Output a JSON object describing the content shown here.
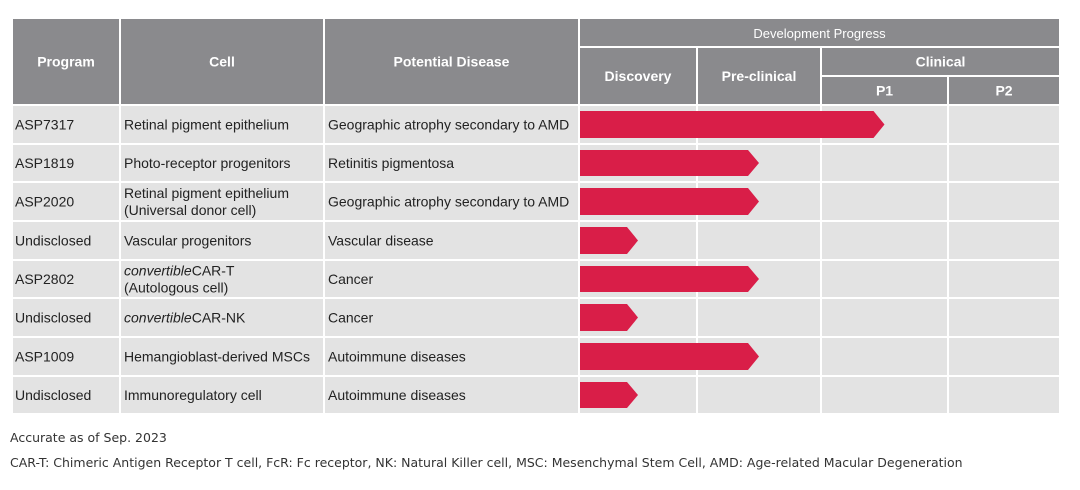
{
  "chart_data": {
    "type": "table",
    "title": "Development Progress",
    "stages": {
      "discovery": "Discovery",
      "preclinical": "Pre-clinical",
      "clinical": "Clinical",
      "p1": "P1",
      "p2": "P2"
    },
    "columns": {
      "program": "Program",
      "cell": "Cell",
      "disease": "Potential Disease"
    },
    "stage_scale": [
      "Discovery",
      "Pre-clinical",
      "P1",
      "P2"
    ],
    "rows": [
      {
        "program": "ASP7317",
        "cell": [
          "Retinal pigment epithelium"
        ],
        "disease": "Geographic atrophy secondary to AMD",
        "progress": 2.5
      },
      {
        "program": "ASP1819",
        "cell": [
          "Photo-receptor progenitors"
        ],
        "disease": "Retinitis pigmentosa",
        "progress": 1.5
      },
      {
        "program": "ASP2020",
        "cell": [
          "Retinal pigment epithelium",
          "(Universal donor cell)"
        ],
        "disease": "Geographic atrophy secondary to AMD",
        "progress": 1.5
      },
      {
        "program": "Undisclosed",
        "cell": [
          "Vascular progenitors"
        ],
        "disease": "Vascular disease",
        "progress": 0.5
      },
      {
        "program": "ASP2802",
        "cell": [
          {
            "italic": "convertible",
            "rest": "CAR-T"
          },
          "(Autologous cell)"
        ],
        "disease": "Cancer",
        "progress": 1.5
      },
      {
        "program": "Undisclosed",
        "cell": [
          {
            "italic": "convertible",
            "rest": "CAR-NK"
          }
        ],
        "disease": "Cancer",
        "progress": 0.5
      },
      {
        "program": "ASP1009",
        "cell": [
          "Hemangioblast-derived MSCs"
        ],
        "disease": "Autoimmune diseases",
        "progress": 1.5
      },
      {
        "program": "Undisclosed",
        "cell": [
          "Immunoregulatory cell"
        ],
        "disease": "Autoimmune diseases",
        "progress": 0.5
      }
    ],
    "colors": {
      "header": "#8a8a8d",
      "cell": "#e3e3e3",
      "arrow": "#d91e48",
      "grid": "#ffffff"
    }
  },
  "footnotes": {
    "date_note": "Accurate as of Sep. 2023",
    "abbreviations": "CAR-T: Chimeric Antigen Receptor T cell, FcR: Fc receptor, NK: Natural Killer cell, MSC: Mesenchymal Stem Cell, AMD: Age-related Macular Degeneration"
  }
}
